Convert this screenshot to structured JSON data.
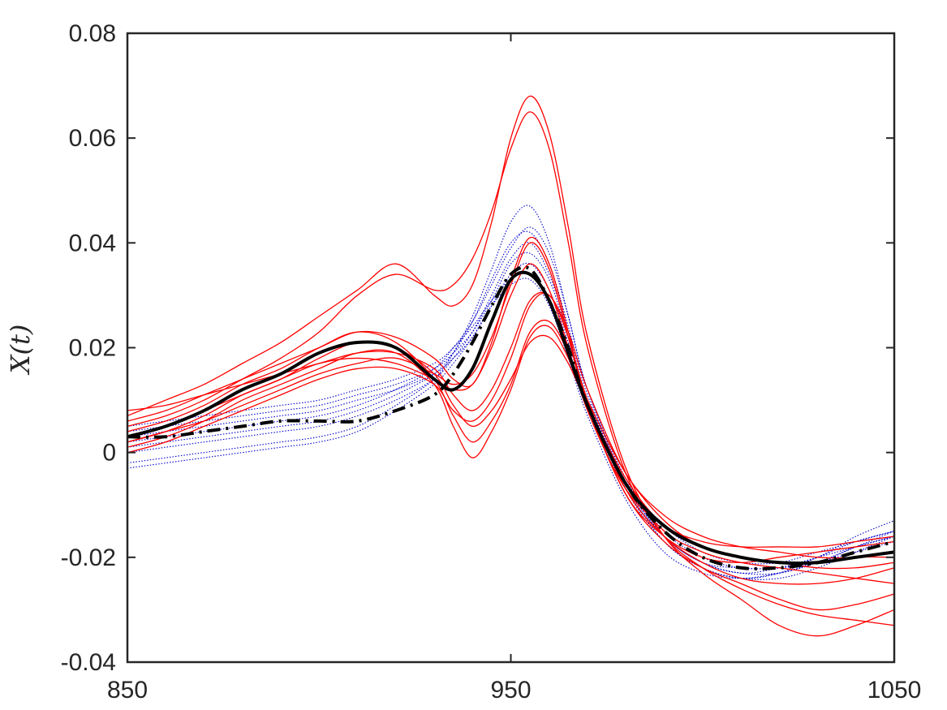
{
  "chart_data": {
    "type": "line",
    "title": "",
    "xlabel": "",
    "ylabel": "X(t)",
    "xlim": [
      850,
      1050
    ],
    "ylim": [
      -0.04,
      0.08
    ],
    "xticks": [
      850,
      950,
      1050
    ],
    "xtick_labels": [
      "850",
      "950",
      "1050"
    ],
    "yticks": [
      -0.04,
      -0.02,
      0,
      0.02,
      0.04,
      0.06,
      0.08
    ],
    "ytick_labels": [
      "-0.04",
      "-0.02",
      "0",
      "0.02",
      "0.04",
      "0.06",
      "0.08"
    ],
    "grid": false,
    "legend": "none",
    "colors": {
      "group_a": "#ff0000",
      "group_b": "#0000cc",
      "mean": "#000000",
      "axis": "#262626"
    },
    "x": [
      850,
      860,
      870,
      880,
      890,
      900,
      910,
      920,
      930,
      935,
      940,
      945,
      950,
      955,
      960,
      965,
      970,
      980,
      990,
      1000,
      1010,
      1020,
      1030,
      1040,
      1050
    ],
    "series": [
      {
        "group": "red",
        "style": "solid",
        "values": [
          0.002,
          0.004,
          0.007,
          0.011,
          0.014,
          0.018,
          0.021,
          0.02,
          0.015,
          0.009,
          0.005,
          0.008,
          0.014,
          0.021,
          0.022,
          0.017,
          0.009,
          -0.005,
          -0.014,
          -0.018,
          -0.02,
          -0.021,
          -0.021,
          -0.02,
          -0.02
        ]
      },
      {
        "group": "red",
        "style": "solid",
        "values": [
          0.004,
          0.006,
          0.009,
          0.013,
          0.016,
          0.02,
          0.023,
          0.021,
          0.014,
          0.007,
          0.002,
          0.006,
          0.013,
          0.023,
          0.025,
          0.019,
          0.01,
          -0.004,
          -0.013,
          -0.018,
          -0.02,
          -0.021,
          -0.022,
          -0.022,
          -0.021
        ]
      },
      {
        "group": "red",
        "style": "solid",
        "values": [
          0.001,
          0.003,
          0.006,
          0.01,
          0.013,
          0.016,
          0.019,
          0.019,
          0.013,
          0.005,
          -0.001,
          0.004,
          0.012,
          0.022,
          0.024,
          0.018,
          0.009,
          -0.006,
          -0.015,
          -0.019,
          -0.021,
          -0.022,
          -0.023,
          -0.024,
          -0.025
        ]
      },
      {
        "group": "red",
        "style": "solid",
        "values": [
          0.005,
          0.007,
          0.01,
          0.014,
          0.018,
          0.023,
          0.03,
          0.034,
          0.031,
          0.032,
          0.037,
          0.046,
          0.058,
          0.065,
          0.058,
          0.04,
          0.02,
          -0.004,
          -0.016,
          -0.022,
          -0.026,
          -0.029,
          -0.031,
          -0.032,
          -0.033
        ]
      },
      {
        "group": "red",
        "style": "solid",
        "values": [
          0.007,
          0.01,
          0.013,
          0.017,
          0.021,
          0.026,
          0.031,
          0.036,
          0.03,
          0.028,
          0.032,
          0.044,
          0.06,
          0.068,
          0.061,
          0.043,
          0.022,
          -0.003,
          -0.016,
          -0.023,
          -0.028,
          -0.033,
          -0.035,
          -0.033,
          -0.03
        ]
      },
      {
        "group": "red",
        "style": "solid",
        "values": [
          0.003,
          0.005,
          0.008,
          0.011,
          0.014,
          0.017,
          0.018,
          0.017,
          0.014,
          0.012,
          0.013,
          0.02,
          0.03,
          0.036,
          0.031,
          0.02,
          0.008,
          -0.007,
          -0.014,
          -0.017,
          -0.018,
          -0.018,
          -0.018,
          -0.017,
          -0.016
        ]
      },
      {
        "group": "red",
        "style": "solid",
        "values": [
          0.006,
          0.008,
          0.011,
          0.014,
          0.017,
          0.02,
          0.023,
          0.022,
          0.018,
          0.014,
          0.013,
          0.021,
          0.033,
          0.041,
          0.036,
          0.023,
          0.009,
          -0.008,
          -0.016,
          -0.02,
          -0.021,
          -0.02,
          -0.019,
          -0.018,
          -0.017
        ]
      },
      {
        "group": "red",
        "style": "solid",
        "values": [
          0.0,
          0.002,
          0.005,
          0.008,
          0.011,
          0.014,
          0.016,
          0.016,
          0.013,
          0.008,
          0.006,
          0.01,
          0.018,
          0.028,
          0.03,
          0.022,
          0.01,
          -0.007,
          -0.016,
          -0.021,
          -0.024,
          -0.025,
          -0.025,
          -0.024,
          -0.022
        ]
      },
      {
        "group": "red",
        "style": "solid",
        "values": [
          0.008,
          0.009,
          0.011,
          0.013,
          0.015,
          0.017,
          0.019,
          0.019,
          0.016,
          0.011,
          0.008,
          0.012,
          0.02,
          0.029,
          0.03,
          0.023,
          0.012,
          -0.004,
          -0.012,
          -0.016,
          -0.018,
          -0.019,
          -0.02,
          -0.02,
          -0.019
        ]
      },
      {
        "group": "red",
        "style": "solid",
        "values": [
          0.002,
          0.004,
          0.006,
          0.009,
          0.012,
          0.015,
          0.017,
          0.018,
          0.015,
          0.013,
          0.015,
          0.022,
          0.032,
          0.04,
          0.035,
          0.022,
          0.009,
          -0.008,
          -0.017,
          -0.022,
          -0.025,
          -0.028,
          -0.03,
          -0.029,
          -0.027
        ]
      },
      {
        "group": "blue",
        "style": "dotted",
        "values": [
          0.001,
          0.002,
          0.003,
          0.004,
          0.005,
          0.006,
          0.008,
          0.011,
          0.015,
          0.019,
          0.025,
          0.033,
          0.04,
          0.042,
          0.036,
          0.024,
          0.011,
          -0.006,
          -0.016,
          -0.021,
          -0.023,
          -0.022,
          -0.02,
          -0.018,
          -0.016
        ]
      },
      {
        "group": "blue",
        "style": "dotted",
        "values": [
          -0.002,
          -0.001,
          0.0,
          0.001,
          0.002,
          0.003,
          0.005,
          0.009,
          0.014,
          0.019,
          0.026,
          0.035,
          0.044,
          0.047,
          0.04,
          0.026,
          0.012,
          -0.006,
          -0.017,
          -0.022,
          -0.024,
          -0.023,
          -0.02,
          -0.017,
          -0.015
        ]
      },
      {
        "group": "blue",
        "style": "dotted",
        "values": [
          0.003,
          0.004,
          0.005,
          0.006,
          0.007,
          0.008,
          0.01,
          0.012,
          0.015,
          0.018,
          0.022,
          0.028,
          0.034,
          0.036,
          0.031,
          0.021,
          0.01,
          -0.005,
          -0.014,
          -0.019,
          -0.021,
          -0.021,
          -0.019,
          -0.017,
          -0.015
        ]
      },
      {
        "group": "blue",
        "style": "dotted",
        "values": [
          0.0,
          0.001,
          0.002,
          0.003,
          0.004,
          0.005,
          0.007,
          0.01,
          0.014,
          0.018,
          0.023,
          0.03,
          0.037,
          0.04,
          0.034,
          0.023,
          0.01,
          -0.007,
          -0.017,
          -0.022,
          -0.024,
          -0.024,
          -0.022,
          -0.019,
          -0.016
        ]
      },
      {
        "group": "blue",
        "style": "dotted",
        "values": [
          0.005,
          0.006,
          0.007,
          0.008,
          0.009,
          0.01,
          0.012,
          0.014,
          0.017,
          0.02,
          0.024,
          0.029,
          0.033,
          0.034,
          0.029,
          0.019,
          0.008,
          -0.007,
          -0.016,
          -0.021,
          -0.022,
          -0.022,
          -0.02,
          -0.016,
          -0.013
        ]
      },
      {
        "group": "blue",
        "style": "dotted",
        "values": [
          -0.003,
          -0.002,
          -0.001,
          0.0,
          0.001,
          0.002,
          0.004,
          0.008,
          0.013,
          0.017,
          0.022,
          0.028,
          0.032,
          0.033,
          0.028,
          0.018,
          0.007,
          -0.009,
          -0.019,
          -0.023,
          -0.024,
          -0.023,
          -0.021,
          -0.019,
          -0.017
        ]
      },
      {
        "group": "blue",
        "style": "dotted",
        "values": [
          0.002,
          0.003,
          0.004,
          0.005,
          0.006,
          0.007,
          0.009,
          0.012,
          0.016,
          0.02,
          0.025,
          0.032,
          0.039,
          0.043,
          0.038,
          0.026,
          0.012,
          -0.005,
          -0.015,
          -0.02,
          -0.022,
          -0.022,
          -0.021,
          -0.018,
          -0.015
        ]
      },
      {
        "group": "blue",
        "style": "dotted",
        "values": [
          0.004,
          0.005,
          0.006,
          0.007,
          0.008,
          0.009,
          0.011,
          0.013,
          0.016,
          0.019,
          0.023,
          0.029,
          0.036,
          0.038,
          0.033,
          0.022,
          0.01,
          -0.006,
          -0.016,
          -0.021,
          -0.023,
          -0.023,
          -0.021,
          -0.018,
          -0.016
        ]
      },
      {
        "group": "mean",
        "style": "solid",
        "values": [
          0.003,
          0.005,
          0.008,
          0.012,
          0.015,
          0.019,
          0.021,
          0.02,
          0.014,
          0.012,
          0.016,
          0.025,
          0.033,
          0.034,
          0.029,
          0.019,
          0.009,
          -0.006,
          -0.014,
          -0.018,
          -0.02,
          -0.021,
          -0.021,
          -0.02,
          -0.019
        ]
      },
      {
        "group": "mean",
        "style": "dashdot",
        "values": [
          0.003,
          0.003,
          0.004,
          0.005,
          0.006,
          0.006,
          0.006,
          0.008,
          0.011,
          0.015,
          0.021,
          0.028,
          0.034,
          0.035,
          0.029,
          0.02,
          0.009,
          -0.006,
          -0.015,
          -0.02,
          -0.022,
          -0.022,
          -0.021,
          -0.019,
          -0.017
        ]
      }
    ]
  }
}
